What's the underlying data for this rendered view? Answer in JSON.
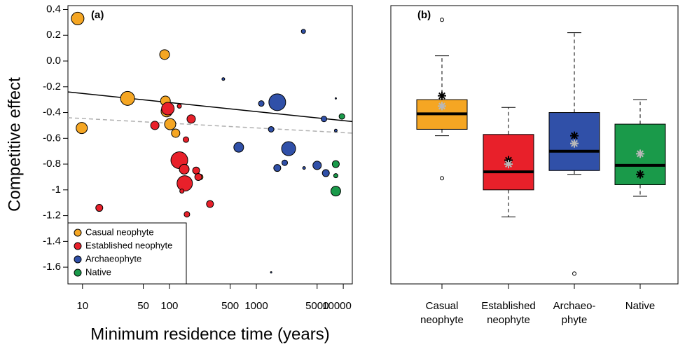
{
  "chart_data": [
    {
      "type": "scatter",
      "panel_label": "(a)",
      "x_label": "Minimum residence time (years)",
      "y_label": "Competitive effect",
      "log_x": true,
      "xlim": [
        6.8,
        12700
      ],
      "ylim": [
        -1.73,
        0.43
      ],
      "xticks": [
        10,
        50,
        100,
        500,
        1000,
        5000,
        10000
      ],
      "yticks": [
        0.4,
        0.2,
        {
          "value": 0,
          "label": "0.0"
        },
        -0.2,
        -0.4,
        -0.6,
        -0.8,
        -1.0,
        -1.2,
        -1.4,
        -1.6
      ],
      "legend": "bottom-left",
      "series": [
        {
          "name": "Casual neophyte",
          "color": "#f5a623",
          "x": [
            8.8,
            9.8,
            33,
            88,
            90,
            93,
            102,
            118,
            226
          ],
          "values": [
            0.33,
            -0.52,
            -0.29,
            0.05,
            -0.31,
            -0.39,
            -0.49,
            -0.56,
            -0.9
          ],
          "sizes": [
            9,
            8,
            10,
            7,
            7,
            8,
            8,
            6,
            4
          ]
        },
        {
          "name": "Established neophyte",
          "color": "#e8202a",
          "x": [
            96,
            130,
            68,
            178,
            155,
            130,
            148,
            203,
            215,
            150,
            139,
            159,
            293,
            15.6
          ],
          "values": [
            -0.37,
            -0.35,
            -0.5,
            -0.45,
            -0.61,
            -0.77,
            -0.84,
            -0.85,
            -0.9,
            -0.95,
            -1.01,
            -1.19,
            -1.11,
            -1.14
          ],
          "sizes": [
            9,
            3,
            6,
            6,
            4,
            12,
            7,
            5,
            5,
            11,
            3,
            4,
            5,
            5
          ]
        },
        {
          "name": "Archaeophyte",
          "color": "#3050a8",
          "x": [
            3480,
            417,
            627,
            1740,
            1140,
            1480,
            2350,
            2120,
            1740,
            3540,
            5000,
            6300,
            6000,
            1480,
            8200,
            8200
          ],
          "values": [
            0.23,
            -0.14,
            -0.67,
            -0.32,
            -0.33,
            -0.53,
            -0.68,
            -0.79,
            -0.83,
            -0.83,
            -0.81,
            -0.87,
            -0.45,
            -1.64,
            -0.29,
            -0.54
          ],
          "sizes": [
            3,
            2,
            7,
            12,
            4,
            4,
            10,
            4,
            5,
            2,
            6,
            5,
            4,
            1,
            1,
            2
          ]
        },
        {
          "name": "Native",
          "color": "#1a9a4a",
          "x": [
            9640,
            8200,
            8200,
            8200
          ],
          "values": [
            -0.43,
            -0.8,
            -0.89,
            -1.01
          ],
          "sizes": [
            4,
            5,
            3,
            7
          ]
        }
      ],
      "lines": [
        {
          "x": [
            6.8,
            12700
          ],
          "values": [
            -0.24,
            -0.47
          ],
          "color": "#000000",
          "dashed": false
        },
        {
          "x": [
            6.8,
            12700
          ],
          "values": [
            -0.44,
            -0.56
          ],
          "color": "#b0b0b0",
          "dashed": true
        }
      ]
    },
    {
      "type": "box",
      "panel_label": "(b)",
      "ylim": [
        -1.73,
        0.43
      ],
      "categories": [
        "Casual\nneophyte",
        "Established\nneophyte",
        "Archaeo-\nphyte",
        "Native"
      ],
      "boxes": [
        {
          "color": "#f5a623",
          "whisker_low": -0.58,
          "q1": -0.53,
          "median": -0.41,
          "q3": -0.3,
          "whisker_high": 0.04,
          "outliers": [
            0.32,
            -0.91
          ],
          "black_star": -0.27,
          "grey_star": -0.35
        },
        {
          "color": "#e8202a",
          "whisker_low": -1.21,
          "q1": -1.0,
          "median": -0.86,
          "q3": -0.57,
          "whisker_high": -0.36,
          "outliers": [],
          "black_star": -0.77,
          "grey_star": -0.8
        },
        {
          "color": "#3050a8",
          "whisker_low": -0.88,
          "q1": -0.85,
          "median": -0.7,
          "q3": -0.4,
          "whisker_high": 0.22,
          "outliers": [
            -1.65
          ],
          "black_star": -0.58,
          "grey_star": -0.64
        },
        {
          "color": "#1a9a4a",
          "whisker_low": -1.05,
          "q1": -0.96,
          "median": -0.81,
          "q3": -0.49,
          "whisker_high": -0.3,
          "outliers": [],
          "black_star": -0.88,
          "grey_star": -0.72
        }
      ]
    }
  ]
}
